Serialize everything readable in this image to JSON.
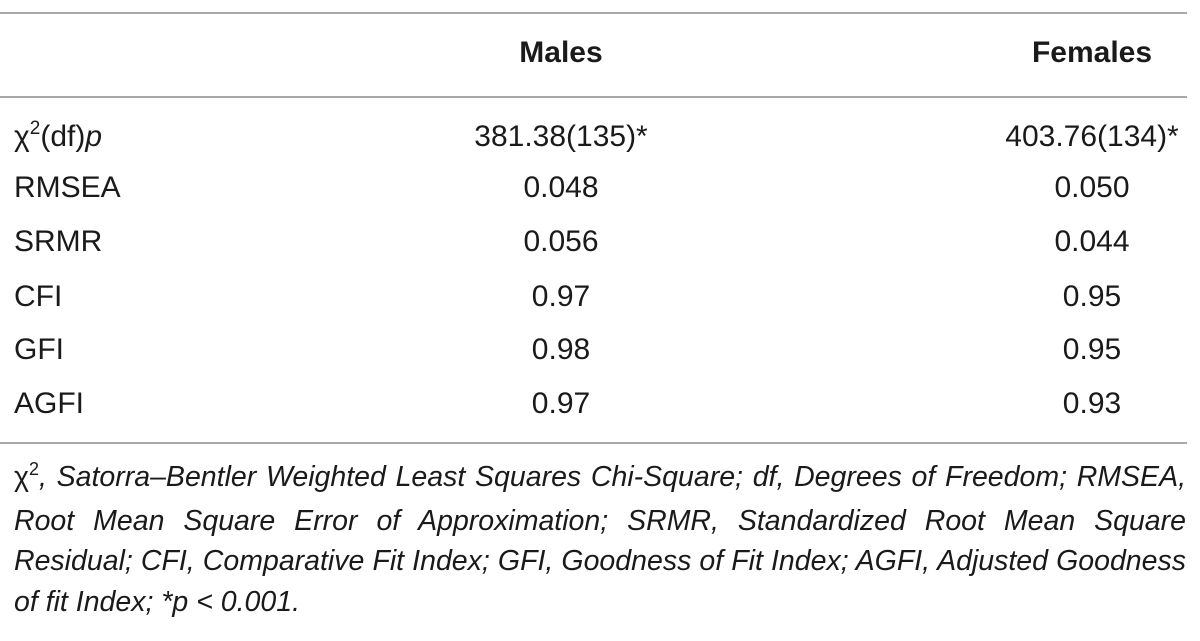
{
  "table": {
    "columns": [
      "Males",
      "Females"
    ],
    "rows": [
      {
        "label_symbol": "χ",
        "label_sup": "2",
        "label_mid": "(df)",
        "label_tail": "p",
        "males": "381.38(135)*",
        "females": "403.76(134)*"
      },
      {
        "label": "RMSEA",
        "males": "0.048",
        "females": "0.050"
      },
      {
        "label": "SRMR",
        "males": "0.056",
        "females": "0.044"
      },
      {
        "label": "CFI",
        "males": "0.97",
        "females": "0.95"
      },
      {
        "label": "GFI",
        "males": "0.98",
        "females": "0.95"
      },
      {
        "label": "AGFI",
        "males": "0.97",
        "females": "0.93"
      }
    ]
  },
  "footnote": {
    "symbol": "χ",
    "sup": "2",
    "text": ", Satorra–Bentler Weighted Least Squares Chi-Square; df, Degrees of Freedom; RMSEA, Root Mean Square Error of Approximation; SRMR, Standardized Root Mean Square Residual; CFI, Comparative Fit Index; GFI, Goodness of Fit Index; AGFI, Adjusted Goodness of fit Index; *p < 0.001."
  }
}
